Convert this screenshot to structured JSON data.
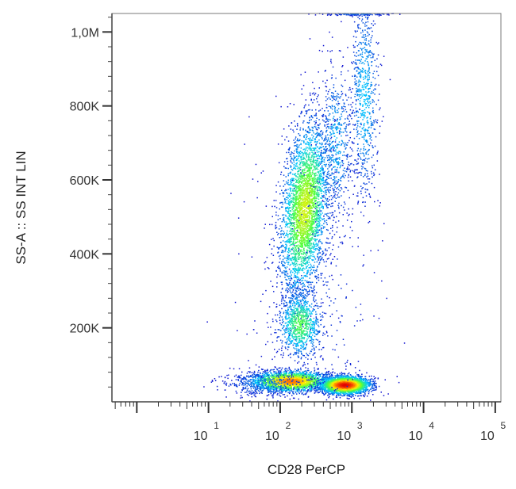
{
  "chart_data": {
    "type": "scatter",
    "subtype": "flow-cytometry-density-dot-plot",
    "xlabel": "CD28 PerCP",
    "ylabel": "SS-A :: SS INT LIN",
    "x_scale": "log",
    "y_scale": "linear",
    "xlim": [
      0.45,
      120000
    ],
    "ylim": [
      0,
      1050000
    ],
    "x_ticks": [
      {
        "base": "10",
        "exp": "1",
        "value": 10
      },
      {
        "base": "10",
        "exp": "2",
        "value": 100
      },
      {
        "base": "10",
        "exp": "3",
        "value": 1000
      },
      {
        "base": "10",
        "exp": "4",
        "value": 10000
      },
      {
        "base": "10",
        "exp": "5",
        "value": 100000
      }
    ],
    "y_ticks": [
      {
        "label": "200K",
        "value": 200000
      },
      {
        "label": "400K",
        "value": 400000
      },
      {
        "label": "600K",
        "value": 600000
      },
      {
        "label": "800K",
        "value": 800000
      },
      {
        "label": "1,0M",
        "value": 1000000
      }
    ],
    "grid": false,
    "legend": "none",
    "color_scale": [
      "#1010d0",
      "#00c8ff",
      "#4cff40",
      "#ffee00",
      "#ff6000",
      "#e00000"
    ],
    "populations": [
      {
        "x_center": 220,
        "y_center": 520000,
        "log_x_spread": 0.16,
        "y_spread": 120000,
        "count": 3400,
        "peak_density": 0.55,
        "x_y_slope": 4.5e-07
      },
      {
        "x_center": 190,
        "y_center": 210000,
        "log_x_spread": 0.15,
        "y_spread": 45000,
        "count": 900,
        "peak_density": 0.4,
        "x_y_slope": 0.0
      },
      {
        "x_center": 140,
        "y_center": 55000,
        "log_x_spread": 0.28,
        "y_spread": 14000,
        "count": 2200,
        "peak_density": 0.78,
        "x_y_slope": 0.0
      },
      {
        "x_center": 800,
        "y_center": 45000,
        "log_x_spread": 0.17,
        "y_spread": 12000,
        "count": 2600,
        "peak_density": 1.0,
        "x_y_slope": 0.0
      },
      {
        "x_center": 1500,
        "y_center": 820000,
        "log_x_spread": 0.1,
        "y_spread": 140000,
        "count": 700,
        "peak_density": 0.2,
        "x_y_slope": 0.0
      },
      {
        "x_center": 600,
        "y_center": 700000,
        "log_x_spread": 0.12,
        "y_spread": 110000,
        "count": 500,
        "peak_density": 0.18,
        "x_y_slope": 0.0
      },
      {
        "x_center": 60,
        "y_center": 48000,
        "log_x_spread": 0.3,
        "y_spread": 18000,
        "count": 350,
        "peak_density": 0.12,
        "x_y_slope": 0.0
      },
      {
        "x_center": 1200,
        "y_center": 1050000,
        "log_x_spread": 0.25,
        "y_spread": 3000,
        "count": 250,
        "peak_density": 0.12,
        "x_y_slope": 0.0
      },
      {
        "x_center": 300,
        "y_center": 300000,
        "log_x_spread": 0.45,
        "y_spread": 250000,
        "count": 350,
        "peak_density": 0.05,
        "x_y_slope": 0.0
      }
    ]
  }
}
